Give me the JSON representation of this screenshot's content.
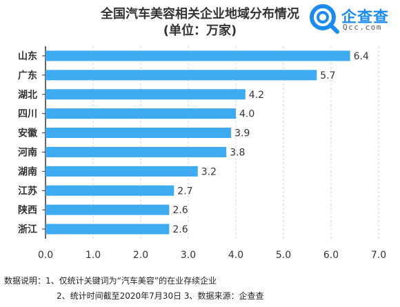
{
  "title": "全国汽车美容相关企业地域分布情况",
  "subtitle": "(单位：万家)",
  "brand": {
    "name": "企查查",
    "domain": "Qcc.com",
    "icon": "qcc-magnifier-logo-icon",
    "color": "#1a8cf0"
  },
  "chart_data": {
    "type": "bar",
    "orientation": "horizontal",
    "categories": [
      "山东",
      "广东",
      "湖北",
      "四川",
      "安徽",
      "河南",
      "湖南",
      "江苏",
      "陕西",
      "浙江"
    ],
    "values": [
      6.4,
      5.7,
      4.2,
      4.0,
      3.9,
      3.8,
      3.2,
      2.7,
      2.6,
      2.6
    ],
    "value_labels": [
      "6.4",
      "5.7",
      "4.2",
      "4.0",
      "3.9",
      "3.8",
      "3.2",
      "2.7",
      "2.6",
      "2.6"
    ],
    "xticks": [
      "0.0",
      "1.0",
      "2.0",
      "3.0",
      "4.0",
      "5.0",
      "6.0",
      "7.0"
    ],
    "xlim": [
      0,
      7
    ],
    "grid": "vertical dashed",
    "bar_color": "#3eaaf0"
  },
  "notes": {
    "line1": "数据说明：1、仅统计关键词为“汽车美容”的在业存续企业",
    "line2": "2、统计时间截至2020年7月30日 3、数据来源：企查查"
  }
}
